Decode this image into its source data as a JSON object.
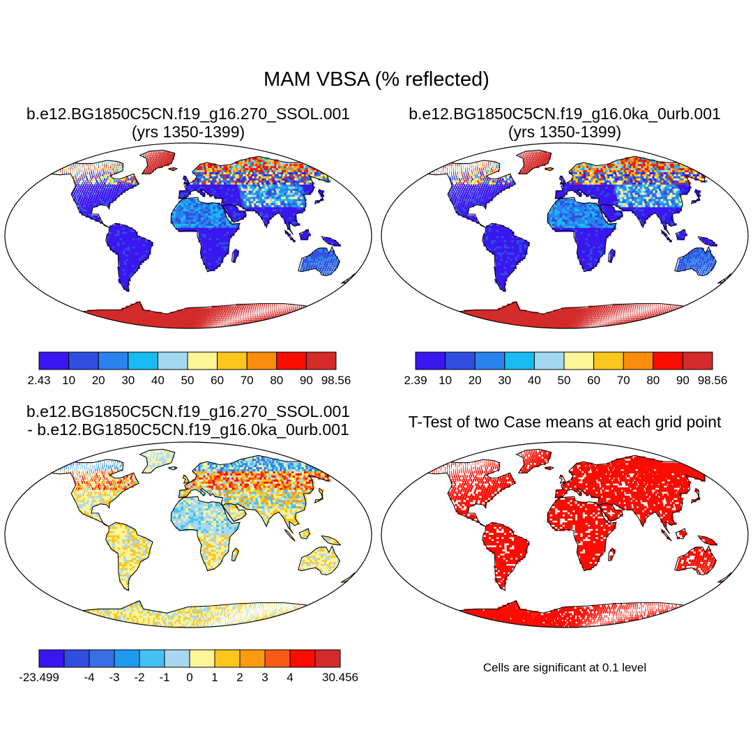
{
  "figure": {
    "title": "MAM VBSA (% reflected)"
  },
  "panels": [
    {
      "id": "case1",
      "title_line1": "b.e12.BG1850C5CN.f19_g16.270_SSOL.001",
      "title_line2": "(yrs 1350-1399)",
      "map_style": "absolute"
    },
    {
      "id": "case2",
      "title_line1": "b.e12.BG1850C5CN.f19_g16.0ka_0urb.001",
      "title_line2": "(yrs 1350-1399)",
      "map_style": "absolute"
    },
    {
      "id": "difference",
      "title_line1": "b.e12.BG1850C5CN.f19_g16.270_SSOL.001",
      "title_line2": "- b.e12.BG1850C5CN.f19_g16.0ka_0urb.001",
      "map_style": "difference"
    },
    {
      "id": "ttest",
      "title_line1": "T-Test of two Case means at each grid point",
      "title_line2": "",
      "map_style": "significance",
      "note": "Cells are significant at 0.1 level"
    }
  ],
  "colorbars": [
    {
      "id": "cb1",
      "colors": [
        "#3a16f0",
        "#2f4ee0",
        "#2a82ee",
        "#18bcf2",
        "#a2d8f0",
        "#fdf596",
        "#fdc61c",
        "#fc8c0b",
        "#fb0c00",
        "#d42a2a"
      ],
      "labels": [
        "2.43",
        "10",
        "20",
        "30",
        "40",
        "50",
        "60",
        "70",
        "80",
        "90",
        "98.56"
      ]
    },
    {
      "id": "cb2",
      "colors": [
        "#3a16f0",
        "#2f4ee0",
        "#2a82ee",
        "#18bcf2",
        "#a2d8f0",
        "#fdf596",
        "#fdc61c",
        "#fc8c0b",
        "#fb0c00",
        "#d42a2a"
      ],
      "labels": [
        "2.39",
        "10",
        "20",
        "30",
        "40",
        "50",
        "60",
        "70",
        "80",
        "90",
        "98.56"
      ]
    },
    {
      "id": "cb3",
      "colors": [
        "#3a16f0",
        "#2f4ee0",
        "#3a6fe3",
        "#1e9bf0",
        "#44c1f2",
        "#a8d8f0",
        "#fdf596",
        "#fdc61c",
        "#fc9a12",
        "#f85a16",
        "#fb0c00",
        "#d42a2a"
      ],
      "labels": [
        "-23.499",
        "",
        "-4",
        "-3",
        "-2",
        "-1",
        "0",
        "1",
        "2",
        "3",
        "4",
        "",
        "30.456"
      ]
    }
  ],
  "palette": {
    "ocean": "#ffffff",
    "coast": "#000000",
    "land_low": "#3a16f0",
    "land_mid": "#2a82ee",
    "land_high": "#d42a2a",
    "diff_neutral": "#fdf596",
    "diff_neg": "#a8d8f0",
    "diff_pos": "#fc8c0b",
    "significant": "#fb0c00"
  }
}
